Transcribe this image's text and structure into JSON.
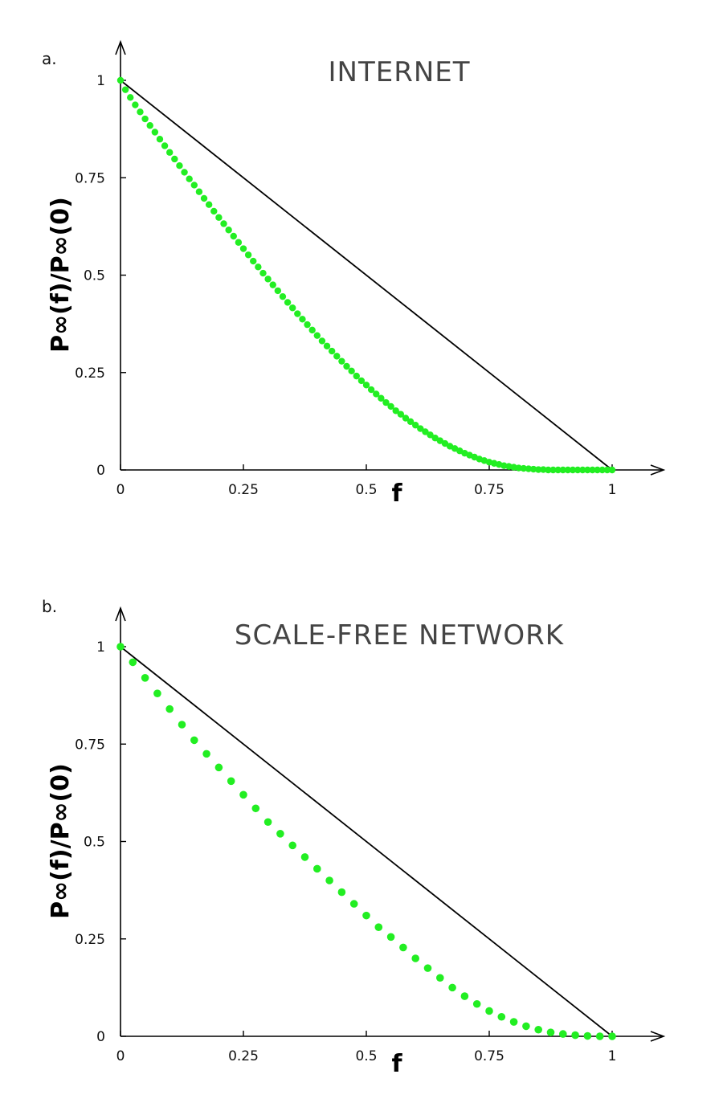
{
  "chart_data": [
    {
      "type": "scatter",
      "panel_label": "a.",
      "title": "INTERNET",
      "xlabel": "f",
      "ylabel": "P∞(f)/P∞(0)",
      "xlim": [
        0,
        1
      ],
      "ylim": [
        0,
        1
      ],
      "x_ticks": [
        "0",
        "0.25",
        "0.5",
        "0.75",
        "1"
      ],
      "y_ticks": [
        "0",
        "0.25",
        "0.5",
        "0.75",
        "1"
      ],
      "reference_line": {
        "x": [
          0,
          1
        ],
        "y": [
          1,
          0
        ],
        "color": "#000000"
      },
      "series": [
        {
          "color": "#22ee22",
          "x": [
            0,
            0.01,
            0.02,
            0.03,
            0.04,
            0.05,
            0.06,
            0.07,
            0.08,
            0.09,
            0.1,
            0.11,
            0.12,
            0.13,
            0.14,
            0.15,
            0.16,
            0.17,
            0.18,
            0.19,
            0.2,
            0.21,
            0.22,
            0.23,
            0.24,
            0.25,
            0.26,
            0.27,
            0.28,
            0.29,
            0.3,
            0.31,
            0.32,
            0.33,
            0.34,
            0.35,
            0.36,
            0.37,
            0.38,
            0.39,
            0.4,
            0.41,
            0.42,
            0.43,
            0.44,
            0.45,
            0.46,
            0.47,
            0.48,
            0.49,
            0.5,
            0.51,
            0.52,
            0.53,
            0.54,
            0.55,
            0.56,
            0.57,
            0.58,
            0.59,
            0.6,
            0.61,
            0.62,
            0.63,
            0.64,
            0.65,
            0.66,
            0.67,
            0.68,
            0.69,
            0.7,
            0.71,
            0.72,
            0.73,
            0.74,
            0.75,
            0.76,
            0.77,
            0.78,
            0.79,
            0.8,
            0.81,
            0.82,
            0.83,
            0.84,
            0.85,
            0.86,
            0.87,
            0.88,
            0.89,
            0.9,
            0.91,
            0.92,
            0.93,
            0.94,
            0.95,
            0.96,
            0.97,
            0.98,
            0.99,
            1.0
          ],
          "y": [
            1.0,
            0.976,
            0.956,
            0.937,
            0.919,
            0.901,
            0.884,
            0.867,
            0.849,
            0.832,
            0.815,
            0.798,
            0.781,
            0.764,
            0.747,
            0.731,
            0.714,
            0.697,
            0.681,
            0.664,
            0.648,
            0.632,
            0.616,
            0.6,
            0.584,
            0.568,
            0.552,
            0.536,
            0.521,
            0.505,
            0.49,
            0.475,
            0.46,
            0.445,
            0.43,
            0.416,
            0.401,
            0.387,
            0.373,
            0.359,
            0.345,
            0.331,
            0.318,
            0.305,
            0.292,
            0.279,
            0.266,
            0.254,
            0.241,
            0.229,
            0.218,
            0.206,
            0.195,
            0.184,
            0.173,
            0.163,
            0.152,
            0.143,
            0.133,
            0.124,
            0.115,
            0.106,
            0.098,
            0.09,
            0.082,
            0.075,
            0.068,
            0.061,
            0.055,
            0.049,
            0.043,
            0.038,
            0.033,
            0.028,
            0.024,
            0.02,
            0.017,
            0.014,
            0.011,
            0.009,
            0.007,
            0.005,
            0.004,
            0.003,
            0.002,
            0.001,
            0.001,
            0.0,
            0.0,
            0.0,
            0.0,
            0.0,
            0.0,
            0.0,
            0.0,
            0.0,
            0.0,
            0.0,
            0.0,
            0.0,
            0.0
          ]
        }
      ]
    },
    {
      "type": "scatter",
      "panel_label": "b.",
      "title": "SCALE-FREE NETWORK",
      "xlabel": "f",
      "ylabel": "P∞(f)/P∞(0)",
      "xlim": [
        0,
        1
      ],
      "ylim": [
        0,
        1
      ],
      "x_ticks": [
        "0",
        "0.25",
        "0.5",
        "0.75",
        "1"
      ],
      "y_ticks": [
        "0",
        "0.25",
        "0.5",
        "0.75",
        "1"
      ],
      "reference_line": {
        "x": [
          0,
          1
        ],
        "y": [
          1,
          0
        ],
        "color": "#000000"
      },
      "series": [
        {
          "color": "#22ee22",
          "x": [
            0.0,
            0.025,
            0.05,
            0.075,
            0.1,
            0.125,
            0.15,
            0.175,
            0.2,
            0.225,
            0.25,
            0.275,
            0.3,
            0.325,
            0.35,
            0.375,
            0.4,
            0.425,
            0.45,
            0.475,
            0.5,
            0.525,
            0.55,
            0.575,
            0.6,
            0.625,
            0.65,
            0.675,
            0.7,
            0.725,
            0.75,
            0.775,
            0.8,
            0.825,
            0.85,
            0.875,
            0.9,
            0.925,
            0.95,
            0.975,
            1.0
          ],
          "y": [
            1.0,
            0.96,
            0.92,
            0.88,
            0.84,
            0.8,
            0.76,
            0.725,
            0.69,
            0.655,
            0.62,
            0.585,
            0.55,
            0.52,
            0.49,
            0.46,
            0.43,
            0.4,
            0.37,
            0.34,
            0.31,
            0.28,
            0.255,
            0.228,
            0.2,
            0.175,
            0.15,
            0.125,
            0.103,
            0.083,
            0.065,
            0.05,
            0.037,
            0.026,
            0.017,
            0.01,
            0.006,
            0.003,
            0.001,
            0.0,
            0.0
          ]
        }
      ]
    }
  ]
}
